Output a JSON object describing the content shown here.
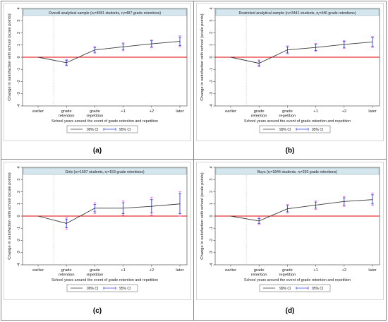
{
  "common": {
    "categories": [
      "earlier",
      "grade retention",
      "grade repetition",
      "+1",
      "+2",
      "later"
    ],
    "xlabel": "School years around the event of grade retention and repetition",
    "ylabel": "Change in satisfaction with school (scale points)",
    "yticks": [
      -4,
      -3,
      -2,
      -1,
      0,
      1,
      2,
      3,
      4
    ],
    "legend": [
      "99% CI",
      "95% CI"
    ],
    "colors": {
      "line": "#3a3a3a",
      "ci99": "#ff66cc",
      "ci95": "#3344ee",
      "zero": "#e00000",
      "title_bg": "#d5e6ef"
    }
  },
  "chart_data": [
    {
      "type": "line",
      "label": "(a)",
      "title": "Overall analytical sample (nᵢ=4581 students, nⱼ=487 grade retentions)",
      "xlabel": "School years around the event of grade retention and repetition",
      "ylabel": "Change in satisfaction with school (scale points)",
      "ylim": [
        -4,
        4
      ],
      "categories": [
        "earlier",
        "grade retention",
        "grade repetition",
        "+1",
        "+2",
        "later"
      ],
      "values": [
        0,
        -0.45,
        0.6,
        0.85,
        1.1,
        1.3
      ],
      "ci95": [
        null,
        [
          -0.65,
          -0.25
        ],
        [
          0.4,
          0.8
        ],
        [
          0.6,
          1.1
        ],
        [
          0.85,
          1.35
        ],
        [
          0.95,
          1.65
        ]
      ],
      "ci99": [
        null,
        [
          -0.7,
          -0.2
        ],
        [
          0.33,
          0.87
        ],
        [
          0.52,
          1.18
        ],
        [
          0.77,
          1.43
        ],
        [
          0.85,
          1.75
        ]
      ]
    },
    {
      "type": "line",
      "label": "(b)",
      "title": "Restricted analytical sample (nᵢ=3441 students, nⱼ=446 grade retentions)",
      "xlabel": "School years around the event of grade retention and repetition",
      "ylabel": "Change in satisfaction with school (scale points)",
      "ylim": [
        -4,
        4
      ],
      "categories": [
        "earlier",
        "grade retention",
        "grade repetition",
        "+1",
        "+2",
        "later"
      ],
      "values": [
        0,
        -0.5,
        0.6,
        0.8,
        1.05,
        1.25
      ],
      "ci95": [
        null,
        [
          -0.7,
          -0.3
        ],
        [
          0.35,
          0.85
        ],
        [
          0.55,
          1.05
        ],
        [
          0.8,
          1.3
        ],
        [
          0.9,
          1.6
        ]
      ],
      "ci99": [
        null,
        [
          -0.77,
          -0.23
        ],
        [
          0.27,
          0.93
        ],
        [
          0.47,
          1.13
        ],
        [
          0.72,
          1.38
        ],
        [
          0.8,
          1.7
        ]
      ]
    },
    {
      "type": "line",
      "label": "(c)",
      "title": "Girls (nᵢ=1597 students, nⱼ=153 grade retentions)",
      "xlabel": "School years around the event of grade retention and repetition",
      "ylabel": "Change in satisfaction with school (scale points)",
      "ylim": [
        -4,
        4
      ],
      "categories": [
        "earlier",
        "grade retention",
        "grade repetition",
        "+1",
        "+2",
        "later"
      ],
      "values": [
        0,
        -0.6,
        0.65,
        0.65,
        0.8,
        1.0
      ],
      "ci95": [
        null,
        [
          -0.95,
          -0.25
        ],
        [
          0.35,
          0.95
        ],
        [
          0.2,
          1.1
        ],
        [
          0.25,
          1.35
        ],
        [
          0.2,
          1.85
        ]
      ],
      "ci99": [
        null,
        [
          -1.1,
          -0.1
        ],
        [
          0.2,
          1.1
        ],
        [
          0.05,
          1.25
        ],
        [
          0.05,
          1.55
        ],
        [
          0.0,
          2.0
        ]
      ]
    },
    {
      "type": "line",
      "label": "(d)",
      "title": "Boys (nᵢ=1844 students, nⱼ=293 grade retentions)",
      "xlabel": "School years around the event of grade retention and repetition",
      "ylabel": "Change in satisfaction with school (scale points)",
      "ylim": [
        -4,
        4
      ],
      "categories": [
        "earlier",
        "grade retention",
        "grade repetition",
        "+1",
        "+2",
        "later"
      ],
      "values": [
        0,
        -0.4,
        0.6,
        0.9,
        1.2,
        1.35
      ],
      "ci95": [
        null,
        [
          -0.6,
          -0.2
        ],
        [
          0.35,
          0.85
        ],
        [
          0.65,
          1.15
        ],
        [
          0.9,
          1.5
        ],
        [
          1.0,
          1.75
        ]
      ],
      "ci99": [
        null,
        [
          -0.7,
          -0.1
        ],
        [
          0.25,
          0.95
        ],
        [
          0.55,
          1.25
        ],
        [
          0.8,
          1.6
        ],
        [
          0.85,
          1.9
        ]
      ]
    }
  ]
}
